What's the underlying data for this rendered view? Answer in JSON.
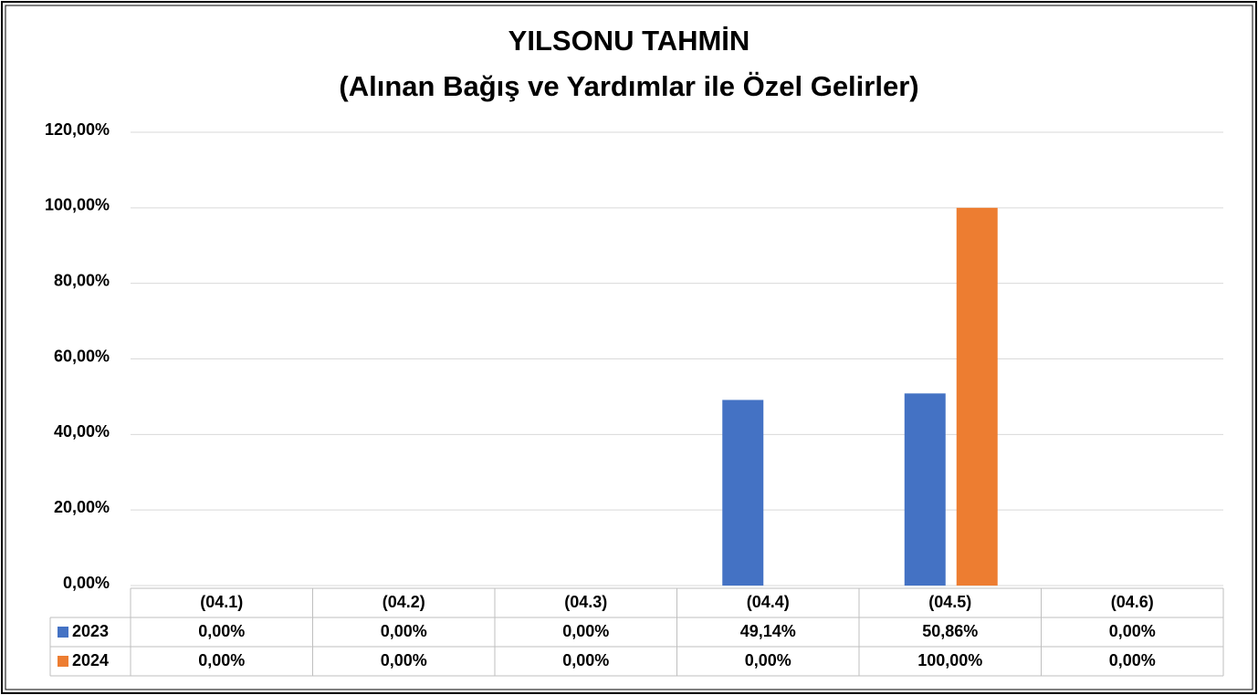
{
  "chart_data": {
    "type": "bar",
    "title": "YILSONU TAHMİN",
    "subtitle": "(Alınan Bağış ve Yardımlar ile Özel Gelirler)",
    "categories": [
      "(04.1)",
      "(04.2)",
      "(04.3)",
      "(04.4)",
      "(04.5)",
      "(04.6)"
    ],
    "series": [
      {
        "name": "2023",
        "color": "#4472c4",
        "values": [
          0,
          0,
          0,
          49.14,
          50.86,
          0
        ],
        "value_labels": [
          "0,00%",
          "0,00%",
          "0,00%",
          "49,14%",
          "50,86%",
          "0,00%"
        ]
      },
      {
        "name": "2024",
        "color": "#ed7d31",
        "values": [
          0,
          0,
          0,
          0,
          100,
          0
        ],
        "value_labels": [
          "0,00%",
          "0,00%",
          "0,00%",
          "0,00%",
          "100,00%",
          "0,00%"
        ]
      }
    ],
    "ylim": [
      0,
      120
    ],
    "yticks": [
      {
        "value": 0,
        "label": "0,00%"
      },
      {
        "value": 20,
        "label": "20,00%"
      },
      {
        "value": 40,
        "label": "40,00%"
      },
      {
        "value": 60,
        "label": "60,00%"
      },
      {
        "value": 80,
        "label": "80,00%"
      },
      {
        "value": 100,
        "label": "100,00%"
      },
      {
        "value": 120,
        "label": "120,00%"
      }
    ],
    "grid": true
  }
}
